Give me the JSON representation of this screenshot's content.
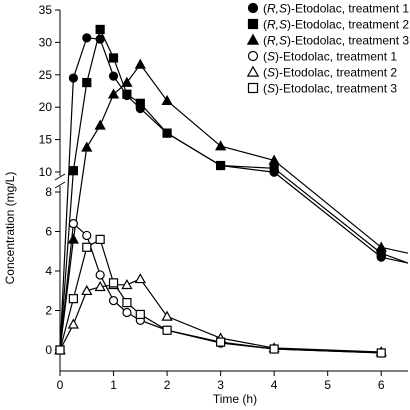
{
  "chart_data": {
    "type": "line",
    "xlabel": "Time (h)",
    "ylabel": "Concentration (mg/L)",
    "xlim": [
      0,
      6.5
    ],
    "x_ticks": [
      0,
      1,
      2,
      3,
      4,
      5,
      6
    ],
    "y_axis_break": true,
    "y_upper": {
      "range": [
        10,
        35
      ],
      "ticks": [
        10,
        15,
        20,
        25,
        30,
        35
      ]
    },
    "y_lower": {
      "range": [
        0,
        8
      ],
      "ticks": [
        0,
        2,
        4,
        6,
        8
      ]
    },
    "legend_position": "top-right",
    "series": [
      {
        "name": "(R,S)-Etodolac, treatment 1",
        "name_parts": [
          "(",
          "R,S",
          ")-Etodolac, treatment 1"
        ],
        "marker": "circle-filled",
        "x": [
          0,
          0.25,
          0.5,
          0.75,
          1,
          1.25,
          1.5,
          2,
          3,
          4,
          6
        ],
        "y": [
          0,
          24.5,
          30.7,
          30.5,
          24.8,
          21.8,
          19.8,
          16.0,
          11.0,
          9.0,
          4.7
        ],
        "line_tail": [
          [
            6,
            4.7
          ],
          [
            6.5,
            4.4
          ]
        ]
      },
      {
        "name": "(R,S)-Etodolac, treatment 2",
        "name_parts": [
          "(",
          "R,S",
          ")-Etodolac, treatment 2"
        ],
        "marker": "square-filled",
        "x": [
          0,
          0.25,
          0.5,
          0.75,
          1,
          1.25,
          1.5,
          2,
          3,
          4,
          6
        ],
        "y": [
          0,
          10.2,
          23.8,
          32.0,
          27.6,
          22.0,
          20.6,
          16.0,
          11.0,
          9.2,
          4.9
        ],
        "line_tail": [
          [
            6,
            4.9
          ],
          [
            6.5,
            4.4
          ]
        ]
      },
      {
        "name": "(R,S)-Etodolac, treatment 3",
        "name_parts": [
          "(",
          "R,S",
          ")-Etodolac, treatment 3"
        ],
        "marker": "triangle-filled",
        "x": [
          0,
          0.25,
          0.5,
          0.75,
          1,
          1.25,
          1.5,
          2,
          3,
          4,
          6
        ],
        "y": [
          0,
          5.6,
          13.8,
          17.2,
          22.0,
          23.8,
          26.6,
          21.0,
          14.0,
          9.6,
          5.2
        ],
        "line_tail": [
          [
            6,
            5.2
          ],
          [
            6.5,
            4.9
          ]
        ]
      },
      {
        "name": "(S)-Etodolac, treatment 1",
        "name_parts": [
          "(",
          "S",
          ")-Etodolac, treatment 1"
        ],
        "marker": "circle-open",
        "x": [
          0,
          0.25,
          0.5,
          0.75,
          1,
          1.25,
          1.5,
          2,
          3,
          4,
          6
        ],
        "y": [
          0,
          6.4,
          5.8,
          3.8,
          2.5,
          1.9,
          1.5,
          1.0,
          0.35,
          0.05,
          -0.15
        ]
      },
      {
        "name": "(S)-Etodolac, treatment 2",
        "name_parts": [
          "(",
          "S",
          ")-Etodolac, treatment 2"
        ],
        "marker": "triangle-open",
        "x": [
          0,
          0.25,
          0.5,
          0.75,
          1,
          1.25,
          1.5,
          2,
          3,
          4,
          6
        ],
        "y": [
          0,
          1.3,
          3.0,
          3.2,
          3.3,
          3.3,
          3.6,
          1.7,
          0.6,
          0.1,
          -0.1
        ]
      },
      {
        "name": "(S)-Etodolac, treatment 3",
        "name_parts": [
          "(",
          "S",
          ")-Etodolac, treatment 3"
        ],
        "marker": "square-open",
        "x": [
          0,
          0.25,
          0.5,
          0.75,
          1,
          1.25,
          1.5,
          2,
          3,
          4,
          6
        ],
        "y": [
          0,
          2.6,
          5.2,
          5.6,
          3.4,
          2.4,
          1.8,
          1.0,
          0.4,
          0.05,
          -0.15
        ]
      }
    ]
  }
}
